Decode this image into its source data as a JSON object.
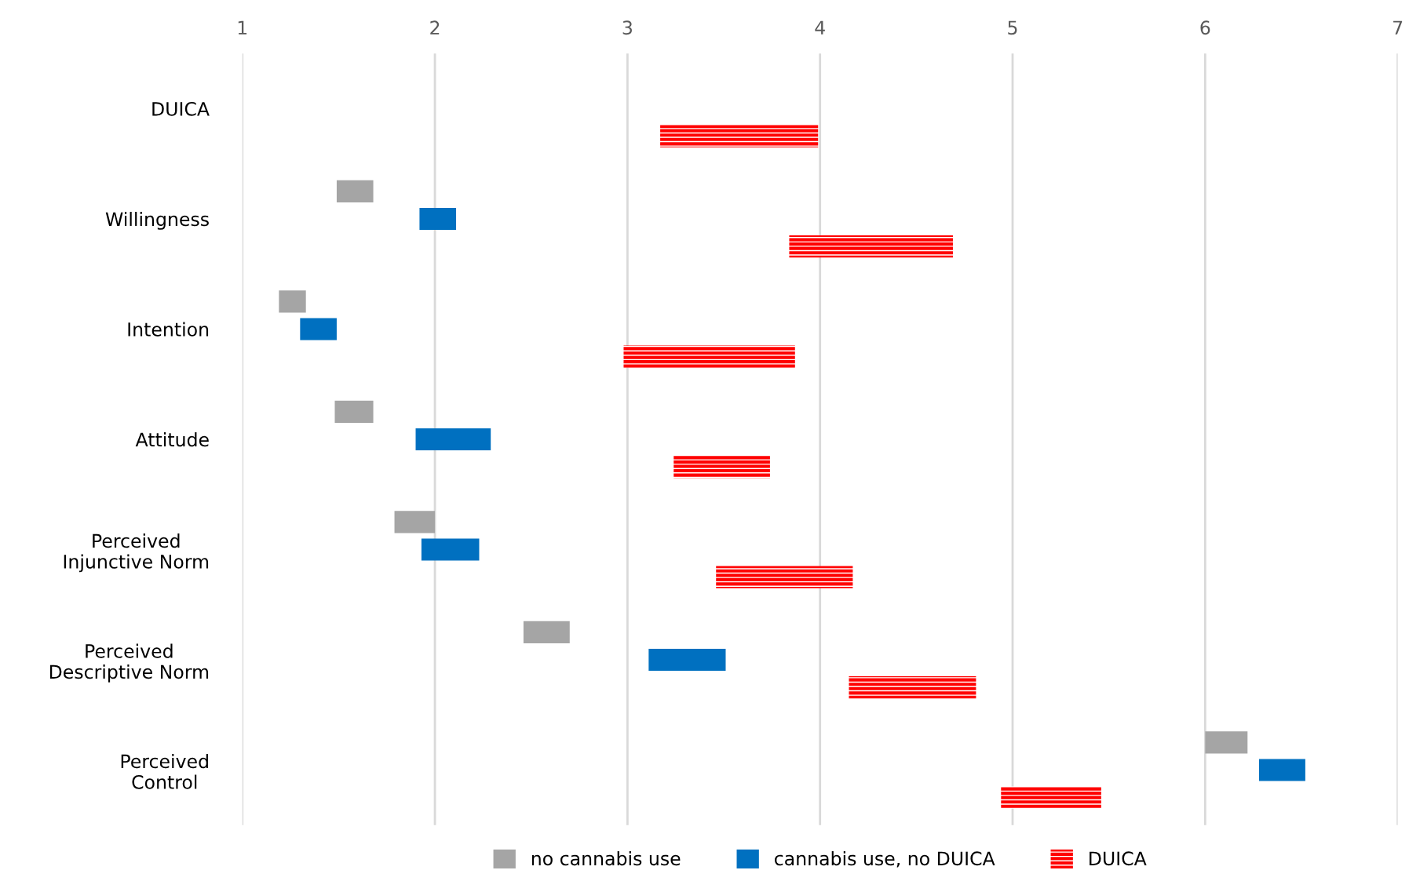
{
  "chart_data": {
    "type": "bar",
    "orientation": "horizontal",
    "categories": [
      "DUICA",
      "Willingness",
      "Intention",
      "Attitude",
      "Perceived\nInjunctive Norm",
      "Perceived\nDescriptive Norm",
      "Perceived\nControl"
    ],
    "series": [
      {
        "name": "no cannabis use",
        "color": "#a5a5a5",
        "base": [
          null,
          1.49,
          1.19,
          1.48,
          1.79,
          2.46,
          6.0
        ],
        "values": [
          null,
          0.19,
          0.14,
          0.2,
          0.21,
          0.24,
          0.22
        ]
      },
      {
        "name": "cannabis use, no DUICA",
        "color": "#0070c0",
        "base": [
          null,
          1.92,
          1.3,
          1.9,
          1.93,
          3.11,
          6.28
        ],
        "values": [
          null,
          0.19,
          0.19,
          0.39,
          0.3,
          0.4,
          0.24
        ]
      },
      {
        "name": "DUICA",
        "color": "#ff0000",
        "base": [
          3.17,
          3.84,
          2.98,
          3.24,
          3.46,
          4.15,
          4.94
        ],
        "values": [
          0.82,
          0.85,
          0.89,
          0.5,
          0.71,
          0.66,
          0.52
        ]
      }
    ],
    "xlim": [
      1,
      7
    ],
    "xticks": [
      1,
      2,
      3,
      4,
      5,
      6,
      7
    ],
    "grid": "x",
    "legend": "bottom"
  }
}
